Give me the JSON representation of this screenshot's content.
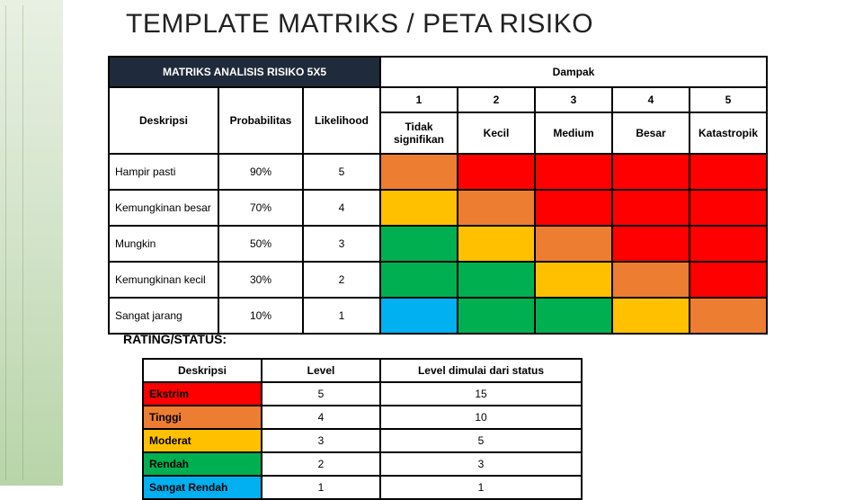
{
  "title": "TEMPLATE MATRIKS / PETA RISIKO",
  "colors": {
    "red": "#ff0000",
    "orange": "#ed7d31",
    "yellow": "#ffc000",
    "green": "#00b050",
    "blue": "#00b0f0",
    "header_dark": "#1f2b3a",
    "white": "#ffffff",
    "black": "#000000"
  },
  "matrix": {
    "header_left": "MATRIKS ANALISIS RISIKO 5X5",
    "header_right": "Dampak",
    "col_deskripsi": "Deskripsi",
    "col_probabilitas": "Probabilitas",
    "col_likelihood": "Likelihood",
    "impact_nums": [
      "1",
      "2",
      "3",
      "4",
      "5"
    ],
    "impact_labels": [
      "Tidak signifikan",
      "Kecil",
      "Medium",
      "Besar",
      "Katastropik"
    ],
    "rows": [
      {
        "desc": "Hampir pasti",
        "prob": "90%",
        "like": "5",
        "cells": [
          "orange",
          "red",
          "red",
          "red",
          "red"
        ]
      },
      {
        "desc": "Kemungkinan besar",
        "prob": "70%",
        "like": "4",
        "cells": [
          "yellow",
          "orange",
          "red",
          "red",
          "red"
        ]
      },
      {
        "desc": "Mungkin",
        "prob": "50%",
        "like": "3",
        "cells": [
          "green",
          "yellow",
          "orange",
          "red",
          "red"
        ]
      },
      {
        "desc": "Kemungkinan kecil",
        "prob": "30%",
        "like": "2",
        "cells": [
          "green",
          "green",
          "yellow",
          "orange",
          "red"
        ]
      },
      {
        "desc": "Sangat jarang",
        "prob": "10%",
        "like": "1",
        "cells": [
          "blue",
          "green",
          "green",
          "yellow",
          "orange"
        ]
      }
    ]
  },
  "rating": {
    "label": "RATING/STATUS:",
    "col_deskripsi": "Deskripsi",
    "col_level": "Level",
    "col_status": "Level dimulai dari status",
    "rows": [
      {
        "desc": "Ekstrim",
        "level": "5",
        "status": "15",
        "color": "red"
      },
      {
        "desc": "Tinggi",
        "level": "4",
        "status": "10",
        "color": "orange"
      },
      {
        "desc": "Moderat",
        "level": "3",
        "status": "5",
        "color": "yellow"
      },
      {
        "desc": "Rendah",
        "level": "2",
        "status": "3",
        "color": "green"
      },
      {
        "desc": "Sangat Rendah",
        "level": "1",
        "status": "1",
        "color": "blue"
      }
    ]
  }
}
